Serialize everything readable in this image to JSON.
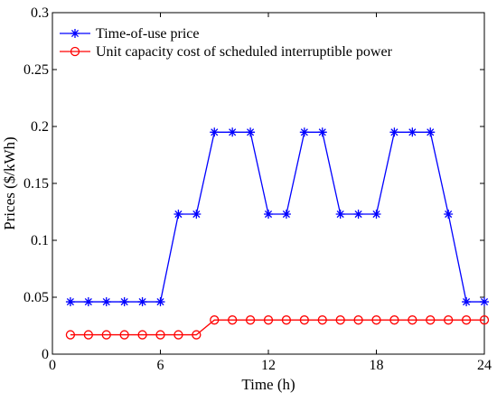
{
  "chart_data": {
    "type": "line",
    "title": "",
    "xlabel": "Time (h)",
    "ylabel": "Prices ($/kWh)",
    "xlim": [
      0,
      24
    ],
    "ylim": [
      0,
      0.3
    ],
    "xticks": [
      0,
      6,
      12,
      18,
      24
    ],
    "yticks": [
      0,
      0.05,
      0.1,
      0.15,
      0.2,
      0.25,
      0.3
    ],
    "x_tick_labels": [
      "0",
      "6",
      "12",
      "18",
      "24"
    ],
    "y_tick_labels": [
      "0",
      "0.05",
      "0.1",
      "0.15",
      "0.2",
      "0.25",
      "0.3"
    ],
    "grid": false,
    "legend_position": "top-left",
    "x": [
      1,
      2,
      3,
      4,
      5,
      6,
      7,
      8,
      9,
      10,
      11,
      12,
      13,
      14,
      15,
      16,
      17,
      18,
      19,
      20,
      21,
      22,
      23,
      24
    ],
    "series": [
      {
        "name": "Time-of-use price",
        "color": "#0000ff",
        "marker": "asterisk",
        "values": [
          0.046,
          0.046,
          0.046,
          0.046,
          0.046,
          0.046,
          0.123,
          0.123,
          0.195,
          0.195,
          0.195,
          0.123,
          0.123,
          0.195,
          0.195,
          0.123,
          0.123,
          0.123,
          0.195,
          0.195,
          0.195,
          0.123,
          0.046,
          0.046
        ]
      },
      {
        "name": "Unit capacity cost of scheduled interruptible power",
        "color": "#ff0000",
        "marker": "circle",
        "values": [
          0.017,
          0.017,
          0.017,
          0.017,
          0.017,
          0.017,
          0.017,
          0.017,
          0.03,
          0.03,
          0.03,
          0.03,
          0.03,
          0.03,
          0.03,
          0.03,
          0.03,
          0.03,
          0.03,
          0.03,
          0.03,
          0.03,
          0.03,
          0.03
        ]
      }
    ]
  }
}
